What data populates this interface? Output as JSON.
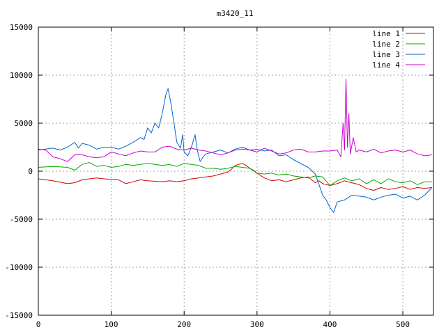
{
  "chart_data": {
    "type": "line",
    "title": "m3420_11",
    "xlabel": "",
    "ylabel": "",
    "xlim": [
      0,
      542
    ],
    "ylim": [
      -15000,
      15000
    ],
    "xticks": [
      0,
      100,
      200,
      300,
      400,
      500
    ],
    "yticks": [
      -15000,
      -10000,
      -5000,
      0,
      5000,
      10000,
      15000
    ],
    "grid": true,
    "legend_position": "top-right",
    "series": [
      {
        "name": "line 1",
        "color": "#d40000",
        "points": [
          [
            0,
            -800
          ],
          [
            20,
            -1000
          ],
          [
            40,
            -1300
          ],
          [
            50,
            -1200
          ],
          [
            60,
            -900
          ],
          [
            70,
            -800
          ],
          [
            80,
            -700
          ],
          [
            90,
            -800
          ],
          [
            100,
            -850
          ],
          [
            110,
            -900
          ],
          [
            120,
            -1300
          ],
          [
            130,
            -1100
          ],
          [
            140,
            -900
          ],
          [
            150,
            -1000
          ],
          [
            160,
            -1050
          ],
          [
            170,
            -1100
          ],
          [
            180,
            -1000
          ],
          [
            190,
            -1100
          ],
          [
            200,
            -1000
          ],
          [
            210,
            -800
          ],
          [
            220,
            -700
          ],
          [
            230,
            -600
          ],
          [
            240,
            -500
          ],
          [
            250,
            -300
          ],
          [
            260,
            -100
          ],
          [
            265,
            200
          ],
          [
            270,
            600
          ],
          [
            275,
            700
          ],
          [
            280,
            800
          ],
          [
            285,
            600
          ],
          [
            290,
            300
          ],
          [
            295,
            100
          ],
          [
            300,
            -200
          ],
          [
            310,
            -700
          ],
          [
            320,
            -1000
          ],
          [
            330,
            -900
          ],
          [
            340,
            -1100
          ],
          [
            350,
            -900
          ],
          [
            360,
            -700
          ],
          [
            370,
            -600
          ],
          [
            380,
            -1200
          ],
          [
            385,
            -1000
          ],
          [
            390,
            -1300
          ],
          [
            400,
            -1500
          ],
          [
            410,
            -1300
          ],
          [
            420,
            -1000
          ],
          [
            430,
            -1200
          ],
          [
            440,
            -1400
          ],
          [
            450,
            -1800
          ],
          [
            460,
            -2000
          ],
          [
            470,
            -1700
          ],
          [
            480,
            -1900
          ],
          [
            490,
            -1800
          ],
          [
            500,
            -1600
          ],
          [
            510,
            -1900
          ],
          [
            520,
            -1700
          ],
          [
            530,
            -1800
          ],
          [
            540,
            -1700
          ]
        ]
      },
      {
        "name": "line 2",
        "color": "#00aa00",
        "points": [
          [
            0,
            400
          ],
          [
            20,
            500
          ],
          [
            40,
            400
          ],
          [
            50,
            100
          ],
          [
            60,
            700
          ],
          [
            70,
            900
          ],
          [
            80,
            500
          ],
          [
            90,
            600
          ],
          [
            100,
            400
          ],
          [
            110,
            500
          ],
          [
            120,
            700
          ],
          [
            130,
            600
          ],
          [
            140,
            700
          ],
          [
            150,
            800
          ],
          [
            160,
            700
          ],
          [
            170,
            600
          ],
          [
            180,
            700
          ],
          [
            190,
            500
          ],
          [
            200,
            800
          ],
          [
            210,
            700
          ],
          [
            220,
            600
          ],
          [
            230,
            300
          ],
          [
            240,
            300
          ],
          [
            250,
            200
          ],
          [
            260,
            300
          ],
          [
            270,
            500
          ],
          [
            280,
            400
          ],
          [
            290,
            300
          ],
          [
            300,
            -200
          ],
          [
            310,
            -300
          ],
          [
            320,
            -200
          ],
          [
            330,
            -400
          ],
          [
            340,
            -300
          ],
          [
            350,
            -500
          ],
          [
            360,
            -600
          ],
          [
            370,
            -700
          ],
          [
            380,
            -500
          ],
          [
            390,
            -600
          ],
          [
            400,
            -1500
          ],
          [
            410,
            -1000
          ],
          [
            420,
            -700
          ],
          [
            430,
            -1000
          ],
          [
            440,
            -800
          ],
          [
            450,
            -1300
          ],
          [
            460,
            -900
          ],
          [
            470,
            -1300
          ],
          [
            480,
            -800
          ],
          [
            490,
            -1100
          ],
          [
            500,
            -1200
          ],
          [
            510,
            -1000
          ],
          [
            520,
            -1400
          ],
          [
            530,
            -1100
          ],
          [
            540,
            -1100
          ]
        ]
      },
      {
        "name": "line 3",
        "color": "#0066cc",
        "points": [
          [
            0,
            2200
          ],
          [
            10,
            2300
          ],
          [
            20,
            2400
          ],
          [
            30,
            2200
          ],
          [
            40,
            2500
          ],
          [
            50,
            3000
          ],
          [
            55,
            2400
          ],
          [
            60,
            2900
          ],
          [
            70,
            2700
          ],
          [
            80,
            2300
          ],
          [
            90,
            2500
          ],
          [
            100,
            2500
          ],
          [
            110,
            2300
          ],
          [
            120,
            2600
          ],
          [
            130,
            3000
          ],
          [
            140,
            3500
          ],
          [
            145,
            3300
          ],
          [
            150,
            4500
          ],
          [
            155,
            4000
          ],
          [
            160,
            5000
          ],
          [
            165,
            4500
          ],
          [
            170,
            6000
          ],
          [
            175,
            8000
          ],
          [
            178,
            8600
          ],
          [
            182,
            7000
          ],
          [
            186,
            5000
          ],
          [
            190,
            3000
          ],
          [
            195,
            2400
          ],
          [
            198,
            3800
          ],
          [
            200,
            2000
          ],
          [
            205,
            1600
          ],
          [
            210,
            2500
          ],
          [
            215,
            3800
          ],
          [
            218,
            2200
          ],
          [
            222,
            1000
          ],
          [
            226,
            1500
          ],
          [
            230,
            1800
          ],
          [
            240,
            2000
          ],
          [
            250,
            2200
          ],
          [
            260,
            1900
          ],
          [
            270,
            2300
          ],
          [
            280,
            2500
          ],
          [
            290,
            2200
          ],
          [
            300,
            2300
          ],
          [
            310,
            2100
          ],
          [
            320,
            2200
          ],
          [
            330,
            1600
          ],
          [
            340,
            1700
          ],
          [
            350,
            1200
          ],
          [
            360,
            800
          ],
          [
            370,
            400
          ],
          [
            380,
            -300
          ],
          [
            385,
            -1400
          ],
          [
            390,
            -2500
          ],
          [
            395,
            -3000
          ],
          [
            400,
            -3800
          ],
          [
            405,
            -4300
          ],
          [
            410,
            -3200
          ],
          [
            420,
            -3000
          ],
          [
            430,
            -2500
          ],
          [
            440,
            -2600
          ],
          [
            450,
            -2700
          ],
          [
            460,
            -3000
          ],
          [
            470,
            -2700
          ],
          [
            480,
            -2500
          ],
          [
            490,
            -2400
          ],
          [
            500,
            -2800
          ],
          [
            510,
            -2600
          ],
          [
            520,
            -3000
          ],
          [
            530,
            -2500
          ],
          [
            540,
            -1700
          ]
        ]
      },
      {
        "name": "line 4",
        "color": "#cc00cc",
        "points": [
          [
            0,
            2300
          ],
          [
            10,
            2200
          ],
          [
            20,
            1500
          ],
          [
            30,
            1300
          ],
          [
            40,
            1000
          ],
          [
            50,
            1700
          ],
          [
            60,
            1700
          ],
          [
            70,
            1500
          ],
          [
            80,
            1400
          ],
          [
            90,
            1500
          ],
          [
            100,
            2000
          ],
          [
            110,
            1800
          ],
          [
            120,
            1600
          ],
          [
            130,
            1900
          ],
          [
            140,
            2100
          ],
          [
            150,
            2000
          ],
          [
            160,
            2000
          ],
          [
            170,
            2500
          ],
          [
            180,
            2600
          ],
          [
            190,
            2300
          ],
          [
            200,
            2200
          ],
          [
            210,
            2400
          ],
          [
            220,
            2200
          ],
          [
            230,
            2100
          ],
          [
            240,
            1900
          ],
          [
            250,
            1700
          ],
          [
            260,
            1900
          ],
          [
            270,
            2200
          ],
          [
            280,
            2300
          ],
          [
            290,
            2200
          ],
          [
            300,
            2000
          ],
          [
            310,
            2400
          ],
          [
            320,
            2100
          ],
          [
            330,
            1800
          ],
          [
            340,
            1900
          ],
          [
            350,
            2200
          ],
          [
            360,
            2300
          ],
          [
            370,
            2000
          ],
          [
            380,
            2000
          ],
          [
            390,
            2100
          ],
          [
            400,
            2100
          ],
          [
            410,
            2200
          ],
          [
            415,
            1500
          ],
          [
            418,
            5000
          ],
          [
            420,
            2200
          ],
          [
            422,
            9600
          ],
          [
            424,
            2500
          ],
          [
            426,
            6000
          ],
          [
            428,
            1800
          ],
          [
            432,
            3500
          ],
          [
            436,
            2000
          ],
          [
            440,
            2200
          ],
          [
            450,
            2000
          ],
          [
            460,
            2300
          ],
          [
            470,
            1900
          ],
          [
            480,
            2100
          ],
          [
            490,
            2200
          ],
          [
            500,
            2000
          ],
          [
            510,
            2200
          ],
          [
            520,
            1800
          ],
          [
            530,
            1600
          ],
          [
            540,
            1700
          ]
        ]
      }
    ]
  }
}
